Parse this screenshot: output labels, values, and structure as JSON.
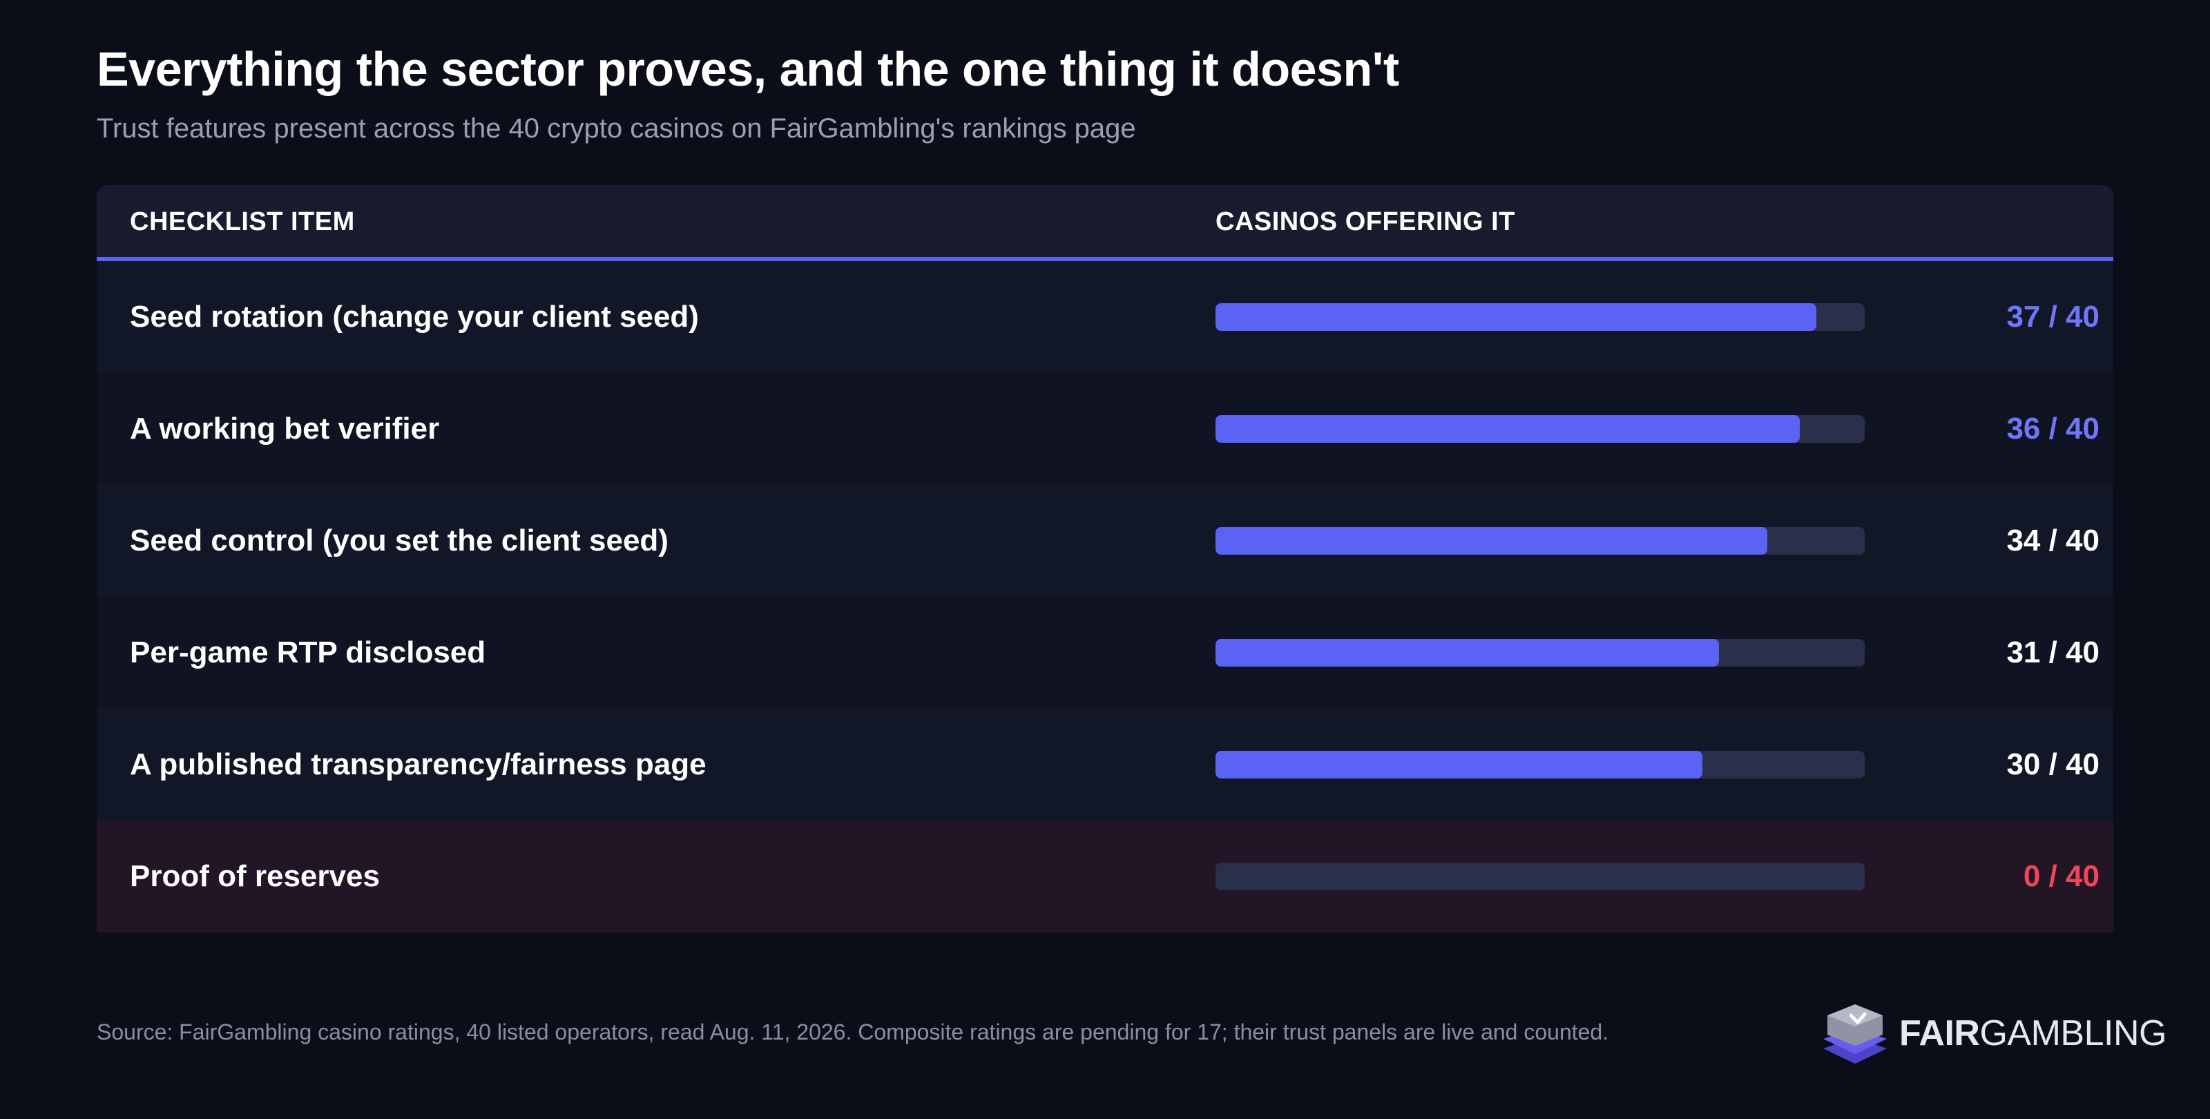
{
  "title": "Everything the sector proves, and the one thing it doesn't",
  "subtitle": "Trust features present across the 40 crypto casinos on FairGambling's rankings page",
  "table": {
    "header_item": "CHECKLIST ITEM",
    "header_count": "CASINOS OFFERING IT"
  },
  "chart_data": {
    "type": "bar",
    "orientation": "horizontal",
    "categories": [
      "Seed rotation (change your client seed)",
      "A working bet verifier",
      "Seed control (you set the client seed)",
      "Per-game RTP disclosed",
      "A published transparency/fairness page",
      "Proof of reserves"
    ],
    "values": [
      37,
      36,
      34,
      31,
      30,
      0
    ],
    "max": 40,
    "labels": [
      "37 / 40",
      "36 / 40",
      "34 / 40",
      "31 / 40",
      "30 / 40",
      "0 / 40"
    ],
    "label_colors": [
      "#6f76f7",
      "#6f76f7",
      "#ffffff",
      "#ffffff",
      "#ffffff",
      "#f0455a"
    ],
    "bar_color": "#5b63f5",
    "track_color": "#2a304c"
  },
  "source": "Source: FairGambling casino ratings, 40 listed operators, read Aug. 11, 2026. Composite ratings are pending for 17; their trust panels are live and counted.",
  "logo": {
    "bold": "FAIR",
    "thin": "GAMBLING",
    "icon": "stacked-chip-icon"
  }
}
